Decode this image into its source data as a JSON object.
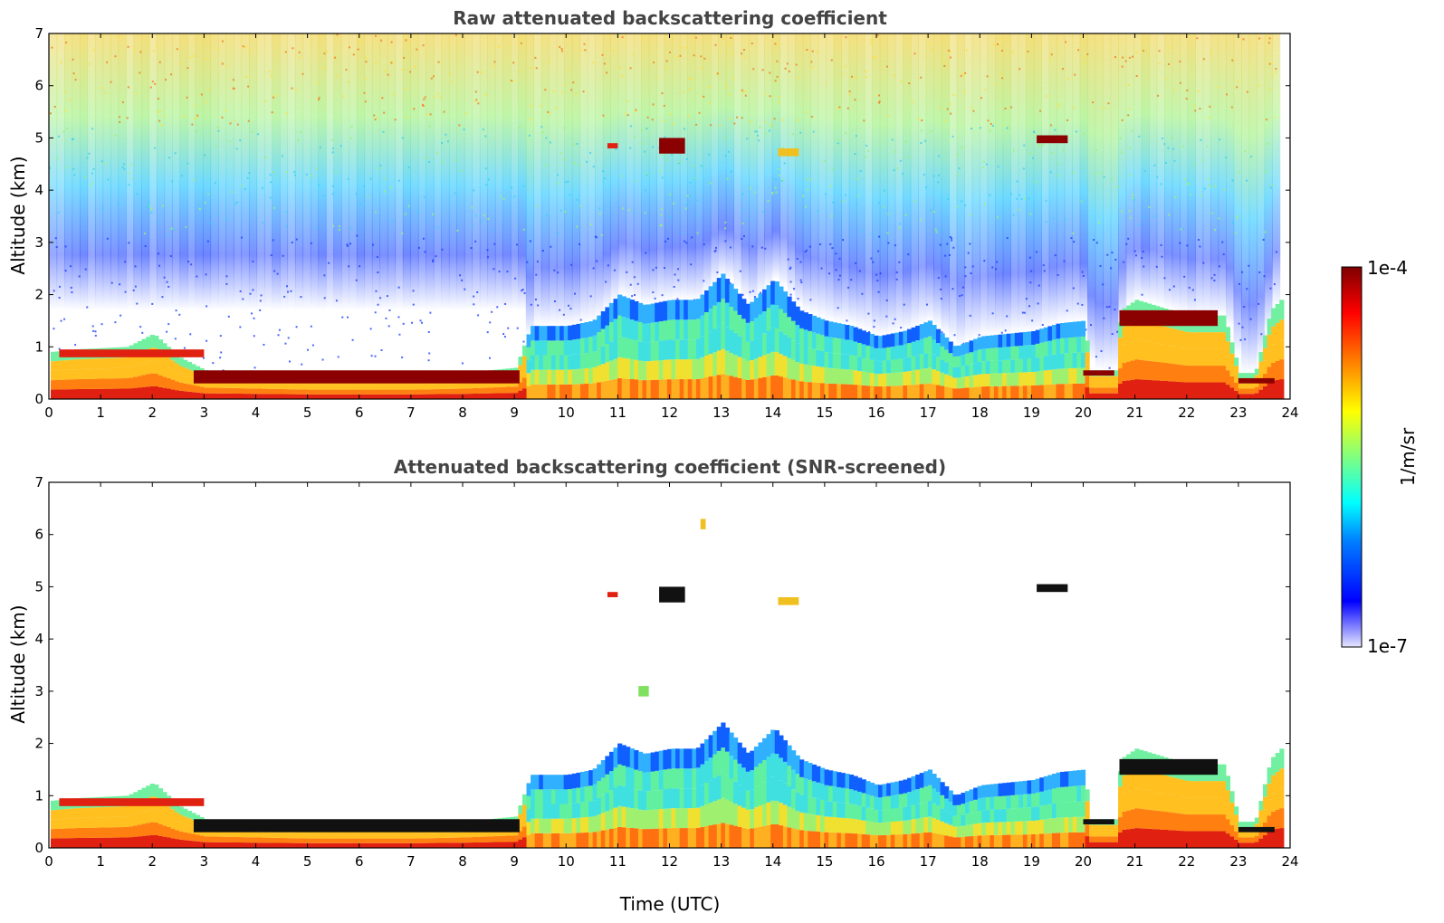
{
  "chart_data": [
    {
      "type": "heatmap",
      "title": "Raw attenuated backscattering coefficient",
      "xlabel": "",
      "ylabel": "Altitude (km)",
      "xlim": [
        0,
        24
      ],
      "ylim": [
        0,
        7
      ],
      "xticks": [
        "0",
        "1",
        "2",
        "3",
        "4",
        "5",
        "6",
        "7",
        "8",
        "9",
        "10",
        "11",
        "12",
        "13",
        "14",
        "15",
        "16",
        "17",
        "18",
        "19",
        "20",
        "21",
        "22",
        "23",
        "24"
      ],
      "yticks": [
        "0",
        "1",
        "2",
        "3",
        "4",
        "5",
        "6",
        "7"
      ],
      "grid": false,
      "boundary_layer_top_km": [
        [
          0,
          0.9
        ],
        [
          0.5,
          0.95
        ],
        [
          1.5,
          1.0
        ],
        [
          2.0,
          1.25
        ],
        [
          2.5,
          0.8
        ],
        [
          3.0,
          0.55
        ],
        [
          4.0,
          0.5
        ],
        [
          5.0,
          0.45
        ],
        [
          6.0,
          0.45
        ],
        [
          7.0,
          0.45
        ],
        [
          8.0,
          0.5
        ],
        [
          9.0,
          0.6
        ],
        [
          9.3,
          1.4
        ],
        [
          10.0,
          1.4
        ],
        [
          10.5,
          1.5
        ],
        [
          11.0,
          2.0
        ],
        [
          11.5,
          1.8
        ],
        [
          12.0,
          1.9
        ],
        [
          12.5,
          1.9
        ],
        [
          13.0,
          2.4
        ],
        [
          13.5,
          1.8
        ],
        [
          14.0,
          2.3
        ],
        [
          14.5,
          1.7
        ],
        [
          15.0,
          1.5
        ],
        [
          15.5,
          1.4
        ],
        [
          16.0,
          1.2
        ],
        [
          16.5,
          1.3
        ],
        [
          17.0,
          1.5
        ],
        [
          17.5,
          1.0
        ],
        [
          18.0,
          1.2
        ],
        [
          18.5,
          1.25
        ],
        [
          19.0,
          1.3
        ],
        [
          19.5,
          1.45
        ],
        [
          20.0,
          1.5
        ],
        [
          20.1,
          0.55
        ],
        [
          20.6,
          0.55
        ],
        [
          20.7,
          1.7
        ],
        [
          21.0,
          1.9
        ],
        [
          22.0,
          1.6
        ],
        [
          22.7,
          1.6
        ],
        [
          23.0,
          0.5
        ],
        [
          23.3,
          0.5
        ],
        [
          23.6,
          1.7
        ],
        [
          23.8,
          1.9
        ]
      ],
      "elevated_layers": [
        {
          "x": [
            0.2,
            3.0
          ],
          "alt_km": [
            0.8,
            0.95
          ],
          "level": "high"
        },
        {
          "x": [
            2.8,
            9.1
          ],
          "alt_km": [
            0.3,
            0.55
          ],
          "level": "very high"
        },
        {
          "x": [
            10.8,
            11.0
          ],
          "alt_km": [
            4.8,
            4.9
          ],
          "level": "high"
        },
        {
          "x": [
            11.8,
            12.3
          ],
          "alt_km": [
            4.7,
            5.0
          ],
          "level": "very high"
        },
        {
          "x": [
            14.1,
            14.5
          ],
          "alt_km": [
            4.65,
            4.8
          ],
          "level": "medium"
        },
        {
          "x": [
            19.1,
            19.7
          ],
          "alt_km": [
            4.9,
            5.05
          ],
          "level": "very high"
        },
        {
          "x": [
            20.0,
            20.6
          ],
          "alt_km": [
            0.45,
            0.55
          ],
          "level": "very high"
        },
        {
          "x": [
            20.7,
            22.6
          ],
          "alt_km": [
            1.4,
            1.7
          ],
          "level": "very high"
        },
        {
          "x": [
            23.0,
            23.7
          ],
          "alt_km": [
            0.3,
            0.4
          ],
          "level": "very high"
        }
      ],
      "noise_above_boundary_layer": true
    },
    {
      "type": "heatmap",
      "title": "Attenuated backscattering coefficient (SNR-screened)",
      "xlabel": "Time (UTC)",
      "ylabel": "Altitude (km)",
      "xlim": [
        0,
        24
      ],
      "ylim": [
        0,
        7
      ],
      "xticks": [
        "0",
        "1",
        "2",
        "3",
        "4",
        "5",
        "6",
        "7",
        "8",
        "9",
        "10",
        "11",
        "12",
        "13",
        "14",
        "15",
        "16",
        "17",
        "18",
        "19",
        "20",
        "21",
        "22",
        "23",
        "24"
      ],
      "yticks": [
        "0",
        "1",
        "2",
        "3",
        "4",
        "5",
        "6",
        "7"
      ],
      "grid": false,
      "noise_above_boundary_layer": false,
      "isolated_features": [
        {
          "x": [
            12.6,
            12.7
          ],
          "alt_km": [
            6.1,
            6.3
          ],
          "level": "medium"
        },
        {
          "x": [
            11.4,
            11.6
          ],
          "alt_km": [
            2.9,
            3.1
          ],
          "level": "low"
        }
      ]
    }
  ],
  "colorbar": {
    "max_label": "1e-4",
    "min_label": "1e-7",
    "label": "1/m/sr",
    "scale": "log",
    "colormap": [
      "#7f0000",
      "#ff0000",
      "#ff8000",
      "#ffff00",
      "#80ff80",
      "#00ffff",
      "#0080ff",
      "#0000ff",
      "#c8c8ff"
    ]
  }
}
